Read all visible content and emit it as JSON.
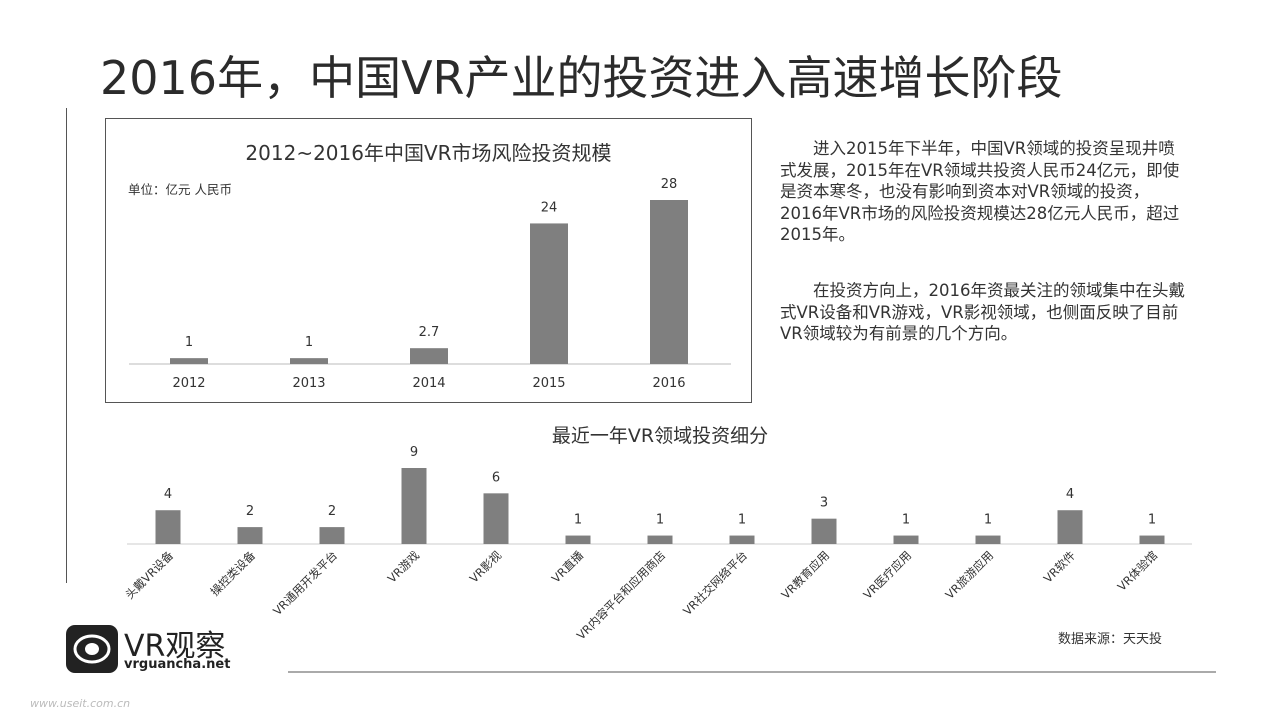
{
  "page": {
    "title": "2016年，中国VR产业的投资进入高速增长阶段",
    "paragraph1": "进入2015年下半年，中国VR领域的投资呈现井喷式发展，2015年在VR领域共投资人民币24亿元，即使是资本寒冬，也没有影响到资本对VR领域的投资，2016年VR市场的风险投资规模达28亿元人民币，超过2015年。",
    "paragraph2": "在投资方向上，2016年资最关注的领域集中在头戴式VR设备和VR游戏，VR影视领域，也侧面反映了目前VR领域较为有前景的几个方向。",
    "source": "数据来源：天天投",
    "logo": {
      "name": "VR观察",
      "url": "vrguancha.net"
    },
    "watermark": "www.useit.com.cn"
  },
  "chart_data": [
    {
      "type": "bar",
      "title": "2012~2016年中国VR市场风险投资规模",
      "unit_label": "单位：亿元 人民币",
      "categories": [
        "2012",
        "2013",
        "2014",
        "2015",
        "2016"
      ],
      "values": [
        1,
        1,
        2.7,
        24,
        28
      ],
      "value_labels": [
        "1",
        "1",
        "2.7",
        "24",
        "28"
      ],
      "ylim": [
        0,
        28
      ],
      "color": "#7f7f7f",
      "grid": false
    },
    {
      "type": "bar",
      "title": "最近一年VR领域投资细分",
      "categories": [
        "头戴VR设备",
        "操控类设备",
        "VR通用开发平台",
        "VR游戏",
        "VR影视",
        "VR直播",
        "VR内容平台和应用商店",
        "VR社交网络平台",
        "VR教育应用",
        "VR医疗应用",
        "VR旅游应用",
        "VR软件",
        "VR体验馆"
      ],
      "values": [
        4,
        2,
        2,
        9,
        6,
        1,
        1,
        1,
        3,
        1,
        1,
        4,
        1
      ],
      "ylim": [
        0,
        9
      ],
      "color": "#7f7f7f",
      "grid": false
    }
  ]
}
